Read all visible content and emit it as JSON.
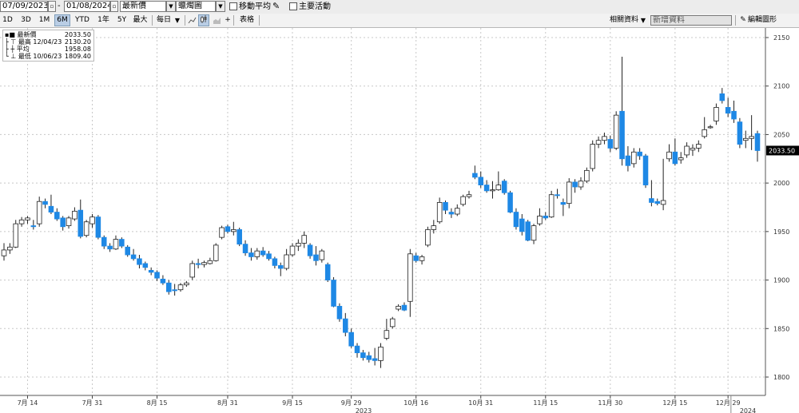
{
  "top_bar": {
    "start_date": "07/09/2023",
    "end_date": "01/08/2024",
    "price_field": "最新價",
    "chart_style": "蠟燭圖",
    "moving_average_label": "移動平均",
    "key_events_label": "主要活動"
  },
  "toolbar": {
    "periods": [
      "1D",
      "3D",
      "1M",
      "6M",
      "YTD",
      "1年",
      "5Y",
      "最大"
    ],
    "active_period": "6M",
    "frequency": "每日",
    "frequency_arrow": "▼",
    "plus_label": "+",
    "table_label": "表格",
    "related_data_label": "相關資料",
    "new_data_label": "新增資料",
    "edit_chart_label": "編輯圖形"
  },
  "legend": {
    "rows": [
      {
        "label": "最新價",
        "value": "2033.50"
      },
      {
        "label": "最高 12/04/23",
        "value": "2130.20"
      },
      {
        "label": "平均",
        "value": "1958.08"
      },
      {
        "label": "最低 10/06/23",
        "value": "1809.40"
      }
    ]
  },
  "colors": {
    "up_candle": "#ffffff",
    "down_candle": "#1e88e5",
    "candle_outline": "#222222",
    "grid": "#c8c8c8",
    "last_price_tag": "#000000"
  },
  "chart_data": {
    "type": "candlestick",
    "title": "",
    "xlabel": "",
    "ylabel": "",
    "ylim": [
      1795,
      2160
    ],
    "yticks": [
      1800,
      1850,
      1900,
      1950,
      2000,
      2050,
      2100,
      2150
    ],
    "grid": true,
    "y_axis_side": "right",
    "last_price": "2033.50",
    "x_tick_labels": [
      "7月 14",
      "7月 31",
      "8月 15",
      "8月 31",
      "9月 15",
      "9月 29",
      "10月 16",
      "10月 31",
      "11月 15",
      "11月 30",
      "12月 15",
      "12月 29"
    ],
    "year_labels": [
      "2023",
      "2024"
    ],
    "candles": [
      {
        "date": "2023-07-10",
        "o": 1925,
        "h": 1938,
        "l": 1920,
        "c": 1931
      },
      {
        "date": "2023-07-11",
        "o": 1931,
        "h": 1938,
        "l": 1927,
        "c": 1934
      },
      {
        "date": "2023-07-12",
        "o": 1934,
        "h": 1962,
        "l": 1933,
        "c": 1958
      },
      {
        "date": "2023-07-13",
        "o": 1958,
        "h": 1965,
        "l": 1955,
        "c": 1962
      },
      {
        "date": "2023-07-14",
        "o": 1962,
        "h": 1966,
        "l": 1958,
        "c": 1964
      },
      {
        "date": "2023-07-17",
        "o": 1956,
        "h": 1962,
        "l": 1952,
        "c": 1955
      },
      {
        "date": "2023-07-18",
        "o": 1958,
        "h": 1986,
        "l": 1955,
        "c": 1981
      },
      {
        "date": "2023-07-19",
        "o": 1981,
        "h": 1984,
        "l": 1974,
        "c": 1978
      },
      {
        "date": "2023-07-20",
        "o": 1976,
        "h": 1988,
        "l": 1968,
        "c": 1970
      },
      {
        "date": "2023-07-21",
        "o": 1970,
        "h": 1974,
        "l": 1961,
        "c": 1963
      },
      {
        "date": "2023-07-24",
        "o": 1964,
        "h": 1966,
        "l": 1951,
        "c": 1955
      },
      {
        "date": "2023-07-25",
        "o": 1956,
        "h": 1966,
        "l": 1953,
        "c": 1964
      },
      {
        "date": "2023-07-26",
        "o": 1963,
        "h": 1975,
        "l": 1961,
        "c": 1971
      },
      {
        "date": "2023-07-27",
        "o": 1972,
        "h": 1983,
        "l": 1943,
        "c": 1945
      },
      {
        "date": "2023-07-28",
        "o": 1946,
        "h": 1962,
        "l": 1944,
        "c": 1960
      },
      {
        "date": "2023-07-31",
        "o": 1958,
        "h": 1968,
        "l": 1954,
        "c": 1965
      },
      {
        "date": "2023-08-01",
        "o": 1965,
        "h": 1967,
        "l": 1942,
        "c": 1944
      },
      {
        "date": "2023-08-02",
        "o": 1944,
        "h": 1946,
        "l": 1932,
        "c": 1935
      },
      {
        "date": "2023-08-03",
        "o": 1935,
        "h": 1938,
        "l": 1929,
        "c": 1932
      },
      {
        "date": "2023-08-04",
        "o": 1932,
        "h": 1946,
        "l": 1931,
        "c": 1942
      },
      {
        "date": "2023-08-07",
        "o": 1942,
        "h": 1944,
        "l": 1933,
        "c": 1935
      },
      {
        "date": "2023-08-08",
        "o": 1934,
        "h": 1936,
        "l": 1924,
        "c": 1926
      },
      {
        "date": "2023-08-09",
        "o": 1926,
        "h": 1932,
        "l": 1920,
        "c": 1922
      },
      {
        "date": "2023-08-10",
        "o": 1922,
        "h": 1926,
        "l": 1912,
        "c": 1916
      },
      {
        "date": "2023-08-11",
        "o": 1917,
        "h": 1919,
        "l": 1910,
        "c": 1913
      },
      {
        "date": "2023-08-14",
        "o": 1910,
        "h": 1913,
        "l": 1905,
        "c": 1908
      },
      {
        "date": "2023-08-15",
        "o": 1908,
        "h": 1910,
        "l": 1899,
        "c": 1902
      },
      {
        "date": "2023-08-16",
        "o": 1901,
        "h": 1905,
        "l": 1895,
        "c": 1897
      },
      {
        "date": "2023-08-17",
        "o": 1897,
        "h": 1900,
        "l": 1885,
        "c": 1888
      },
      {
        "date": "2023-08-18",
        "o": 1890,
        "h": 1896,
        "l": 1884,
        "c": 1889
      },
      {
        "date": "2023-08-21",
        "o": 1890,
        "h": 1897,
        "l": 1888,
        "c": 1895
      },
      {
        "date": "2023-08-22",
        "o": 1895,
        "h": 1899,
        "l": 1893,
        "c": 1897
      },
      {
        "date": "2023-08-23",
        "o": 1903,
        "h": 1920,
        "l": 1900,
        "c": 1917
      },
      {
        "date": "2023-08-24",
        "o": 1917,
        "h": 1922,
        "l": 1912,
        "c": 1916
      },
      {
        "date": "2023-08-25",
        "o": 1916,
        "h": 1920,
        "l": 1913,
        "c": 1918
      },
      {
        "date": "2023-08-28",
        "o": 1917,
        "h": 1923,
        "l": 1916,
        "c": 1920
      },
      {
        "date": "2023-08-29",
        "o": 1920,
        "h": 1938,
        "l": 1919,
        "c": 1936
      },
      {
        "date": "2023-08-30",
        "o": 1944,
        "h": 1956,
        "l": 1942,
        "c": 1954
      },
      {
        "date": "2023-08-31",
        "o": 1955,
        "h": 1957,
        "l": 1948,
        "c": 1950
      },
      {
        "date": "2023-09-01",
        "o": 1950,
        "h": 1960,
        "l": 1946,
        "c": 1952
      },
      {
        "date": "2023-09-04",
        "o": 1952,
        "h": 1954,
        "l": 1935,
        "c": 1937
      },
      {
        "date": "2023-09-05",
        "o": 1937,
        "h": 1941,
        "l": 1925,
        "c": 1928
      },
      {
        "date": "2023-09-06",
        "o": 1928,
        "h": 1933,
        "l": 1920,
        "c": 1924
      },
      {
        "date": "2023-09-07",
        "o": 1924,
        "h": 1933,
        "l": 1921,
        "c": 1930
      },
      {
        "date": "2023-09-08",
        "o": 1930,
        "h": 1934,
        "l": 1924,
        "c": 1926
      },
      {
        "date": "2023-09-11",
        "o": 1927,
        "h": 1930,
        "l": 1920,
        "c": 1922
      },
      {
        "date": "2023-09-12",
        "o": 1922,
        "h": 1924,
        "l": 1912,
        "c": 1915
      },
      {
        "date": "2023-09-13",
        "o": 1915,
        "h": 1918,
        "l": 1904,
        "c": 1912
      },
      {
        "date": "2023-09-14",
        "o": 1912,
        "h": 1932,
        "l": 1910,
        "c": 1926
      },
      {
        "date": "2023-09-15",
        "o": 1926,
        "h": 1938,
        "l": 1924,
        "c": 1935
      },
      {
        "date": "2023-09-18",
        "o": 1935,
        "h": 1942,
        "l": 1930,
        "c": 1938
      },
      {
        "date": "2023-09-19",
        "o": 1938,
        "h": 1950,
        "l": 1933,
        "c": 1946
      },
      {
        "date": "2023-09-20",
        "o": 1936,
        "h": 1938,
        "l": 1922,
        "c": 1925
      },
      {
        "date": "2023-09-21",
        "o": 1926,
        "h": 1935,
        "l": 1915,
        "c": 1920
      },
      {
        "date": "2023-09-22",
        "o": 1921,
        "h": 1932,
        "l": 1918,
        "c": 1930
      },
      {
        "date": "2023-09-25",
        "o": 1916,
        "h": 1918,
        "l": 1898,
        "c": 1900
      },
      {
        "date": "2023-09-26",
        "o": 1900,
        "h": 1903,
        "l": 1872,
        "c": 1873
      },
      {
        "date": "2023-09-27",
        "o": 1873,
        "h": 1876,
        "l": 1857,
        "c": 1860
      },
      {
        "date": "2023-09-28",
        "o": 1860,
        "h": 1866,
        "l": 1842,
        "c": 1846
      },
      {
        "date": "2023-09-29",
        "o": 1846,
        "h": 1850,
        "l": 1830,
        "c": 1832
      },
      {
        "date": "2023-10-02",
        "o": 1832,
        "h": 1835,
        "l": 1820,
        "c": 1825
      },
      {
        "date": "2023-10-03",
        "o": 1825,
        "h": 1828,
        "l": 1817,
        "c": 1820
      },
      {
        "date": "2023-10-04",
        "o": 1822,
        "h": 1826,
        "l": 1815,
        "c": 1818
      },
      {
        "date": "2023-10-05",
        "o": 1819,
        "h": 1830,
        "l": 1812,
        "c": 1817
      },
      {
        "date": "2023-10-06",
        "o": 1817,
        "h": 1835,
        "l": 1809.4,
        "c": 1831
      },
      {
        "date": "2023-10-09",
        "o": 1840,
        "h": 1860,
        "l": 1838,
        "c": 1848
      },
      {
        "date": "2023-10-10",
        "o": 1852,
        "h": 1862,
        "l": 1850,
        "c": 1860
      },
      {
        "date": "2023-10-11",
        "o": 1870,
        "h": 1875,
        "l": 1868,
        "c": 1873
      },
      {
        "date": "2023-10-12",
        "o": 1874,
        "h": 1877,
        "l": 1868,
        "c": 1869
      },
      {
        "date": "2023-10-13",
        "o": 1878,
        "h": 1932,
        "l": 1862,
        "c": 1927
      },
      {
        "date": "2023-10-16",
        "o": 1925,
        "h": 1928,
        "l": 1918,
        "c": 1920
      },
      {
        "date": "2023-10-17",
        "o": 1920,
        "h": 1926,
        "l": 1916,
        "c": 1924
      },
      {
        "date": "2023-10-18",
        "o": 1936,
        "h": 1955,
        "l": 1934,
        "c": 1952
      },
      {
        "date": "2023-10-19",
        "o": 1952,
        "h": 1962,
        "l": 1948,
        "c": 1956
      },
      {
        "date": "2023-10-20",
        "o": 1960,
        "h": 1985,
        "l": 1958,
        "c": 1980
      },
      {
        "date": "2023-10-23",
        "o": 1980,
        "h": 1982,
        "l": 1968,
        "c": 1972
      },
      {
        "date": "2023-10-24",
        "o": 1970,
        "h": 1974,
        "l": 1964,
        "c": 1968
      },
      {
        "date": "2023-10-25",
        "o": 1968,
        "h": 1978,
        "l": 1966,
        "c": 1974
      },
      {
        "date": "2023-10-26",
        "o": 1978,
        "h": 1988,
        "l": 1976,
        "c": 1986
      },
      {
        "date": "2023-10-27",
        "o": 1986,
        "h": 1992,
        "l": 1984,
        "c": 1988
      },
      {
        "date": "2023-10-30",
        "o": 2010,
        "h": 2018,
        "l": 2004,
        "c": 2006
      },
      {
        "date": "2023-10-31",
        "o": 2006,
        "h": 2012,
        "l": 1995,
        "c": 1998
      },
      {
        "date": "2023-11-01",
        "o": 1998,
        "h": 2003,
        "l": 1990,
        "c": 1992
      },
      {
        "date": "2023-11-02",
        "o": 1992,
        "h": 2002,
        "l": 1984,
        "c": 1993
      },
      {
        "date": "2023-11-03",
        "o": 1993,
        "h": 2012,
        "l": 1992,
        "c": 1998
      },
      {
        "date": "2023-11-06",
        "o": 2002,
        "h": 2004,
        "l": 1988,
        "c": 1990
      },
      {
        "date": "2023-11-07",
        "o": 1990,
        "h": 1992,
        "l": 1969,
        "c": 1970
      },
      {
        "date": "2023-11-08",
        "o": 1970,
        "h": 1974,
        "l": 1952,
        "c": 1955
      },
      {
        "date": "2023-11-09",
        "o": 1963,
        "h": 1968,
        "l": 1946,
        "c": 1950
      },
      {
        "date": "2023-11-10",
        "o": 1960,
        "h": 1962,
        "l": 1940,
        "c": 1941
      },
      {
        "date": "2023-11-13",
        "o": 1941,
        "h": 1958,
        "l": 1937,
        "c": 1956
      },
      {
        "date": "2023-11-14",
        "o": 1958,
        "h": 1974,
        "l": 1956,
        "c": 1966
      },
      {
        "date": "2023-11-15",
        "o": 1966,
        "h": 1970,
        "l": 1962,
        "c": 1964
      },
      {
        "date": "2023-11-16",
        "o": 1965,
        "h": 1992,
        "l": 1964,
        "c": 1988
      },
      {
        "date": "2023-11-17",
        "o": 1988,
        "h": 1994,
        "l": 1984,
        "c": 1987
      },
      {
        "date": "2023-11-20",
        "o": 1980,
        "h": 1984,
        "l": 1966,
        "c": 1978
      },
      {
        "date": "2023-11-21",
        "o": 1979,
        "h": 2005,
        "l": 1974,
        "c": 2001
      },
      {
        "date": "2023-11-22",
        "o": 2001,
        "h": 2004,
        "l": 1990,
        "c": 1996
      },
      {
        "date": "2023-11-23",
        "o": 1996,
        "h": 2006,
        "l": 1993,
        "c": 2002
      },
      {
        "date": "2023-11-24",
        "o": 2002,
        "h": 2016,
        "l": 2000,
        "c": 2013
      },
      {
        "date": "2023-11-27",
        "o": 2015,
        "h": 2044,
        "l": 2012,
        "c": 2040
      },
      {
        "date": "2023-11-28",
        "o": 2040,
        "h": 2048,
        "l": 2036,
        "c": 2044
      },
      {
        "date": "2023-11-29",
        "o": 2044,
        "h": 2052,
        "l": 2040,
        "c": 2048
      },
      {
        "date": "2023-11-30",
        "o": 2045,
        "h": 2049,
        "l": 2032,
        "c": 2036
      },
      {
        "date": "2023-12-01",
        "o": 2036,
        "h": 2074,
        "l": 2034,
        "c": 2070
      },
      {
        "date": "2023-12-04",
        "o": 2074,
        "h": 2130.2,
        "l": 2018,
        "c": 2025
      },
      {
        "date": "2023-12-05",
        "o": 2028,
        "h": 2038,
        "l": 2012,
        "c": 2018
      },
      {
        "date": "2023-12-06",
        "o": 2020,
        "h": 2036,
        "l": 2016,
        "c": 2032
      },
      {
        "date": "2023-12-07",
        "o": 2032,
        "h": 2036,
        "l": 2024,
        "c": 2028
      },
      {
        "date": "2023-12-08",
        "o": 2028,
        "h": 2030,
        "l": 1995,
        "c": 1998
      },
      {
        "date": "2023-12-11",
        "o": 1984,
        "h": 2003,
        "l": 1976,
        "c": 1980
      },
      {
        "date": "2023-12-12",
        "o": 1981,
        "h": 1984,
        "l": 1977,
        "c": 1979
      },
      {
        "date": "2023-12-13",
        "o": 1978,
        "h": 2025,
        "l": 1972,
        "c": 1982
      },
      {
        "date": "2023-12-14",
        "o": 2025,
        "h": 2040,
        "l": 2022,
        "c": 2032
      },
      {
        "date": "2023-12-15",
        "o": 2032,
        "h": 2046,
        "l": 2018,
        "c": 2020
      },
      {
        "date": "2023-12-18",
        "o": 2024,
        "h": 2032,
        "l": 2020,
        "c": 2026
      },
      {
        "date": "2023-12-19",
        "o": 2029,
        "h": 2042,
        "l": 2026,
        "c": 2038
      },
      {
        "date": "2023-12-20",
        "o": 2034,
        "h": 2040,
        "l": 2028,
        "c": 2036
      },
      {
        "date": "2023-12-21",
        "o": 2036,
        "h": 2044,
        "l": 2032,
        "c": 2040
      },
      {
        "date": "2023-12-22",
        "o": 2048,
        "h": 2068,
        "l": 2046,
        "c": 2055
      },
      {
        "date": "2023-12-26",
        "o": 2058,
        "h": 2060,
        "l": 2056,
        "c": 2058
      },
      {
        "date": "2023-12-27",
        "o": 2064,
        "h": 2082,
        "l": 2060,
        "c": 2078
      },
      {
        "date": "2023-12-28",
        "o": 2092,
        "h": 2098,
        "l": 2082,
        "c": 2085
      },
      {
        "date": "2023-12-29",
        "o": 2078,
        "h": 2088,
        "l": 2068,
        "c": 2072
      },
      {
        "date": "2024-01-02",
        "o": 2074,
        "h": 2085,
        "l": 2062,
        "c": 2066
      },
      {
        "date": "2024-01-03",
        "o": 2063,
        "h": 2067,
        "l": 2036,
        "c": 2040
      },
      {
        "date": "2024-01-04",
        "o": 2044,
        "h": 2054,
        "l": 2036,
        "c": 2046
      },
      {
        "date": "2024-01-05",
        "o": 2046,
        "h": 2070,
        "l": 2034,
        "c": 2048
      },
      {
        "date": "2024-01-08",
        "o": 2051,
        "h": 2054,
        "l": 2022,
        "c": 2033.5
      }
    ]
  }
}
